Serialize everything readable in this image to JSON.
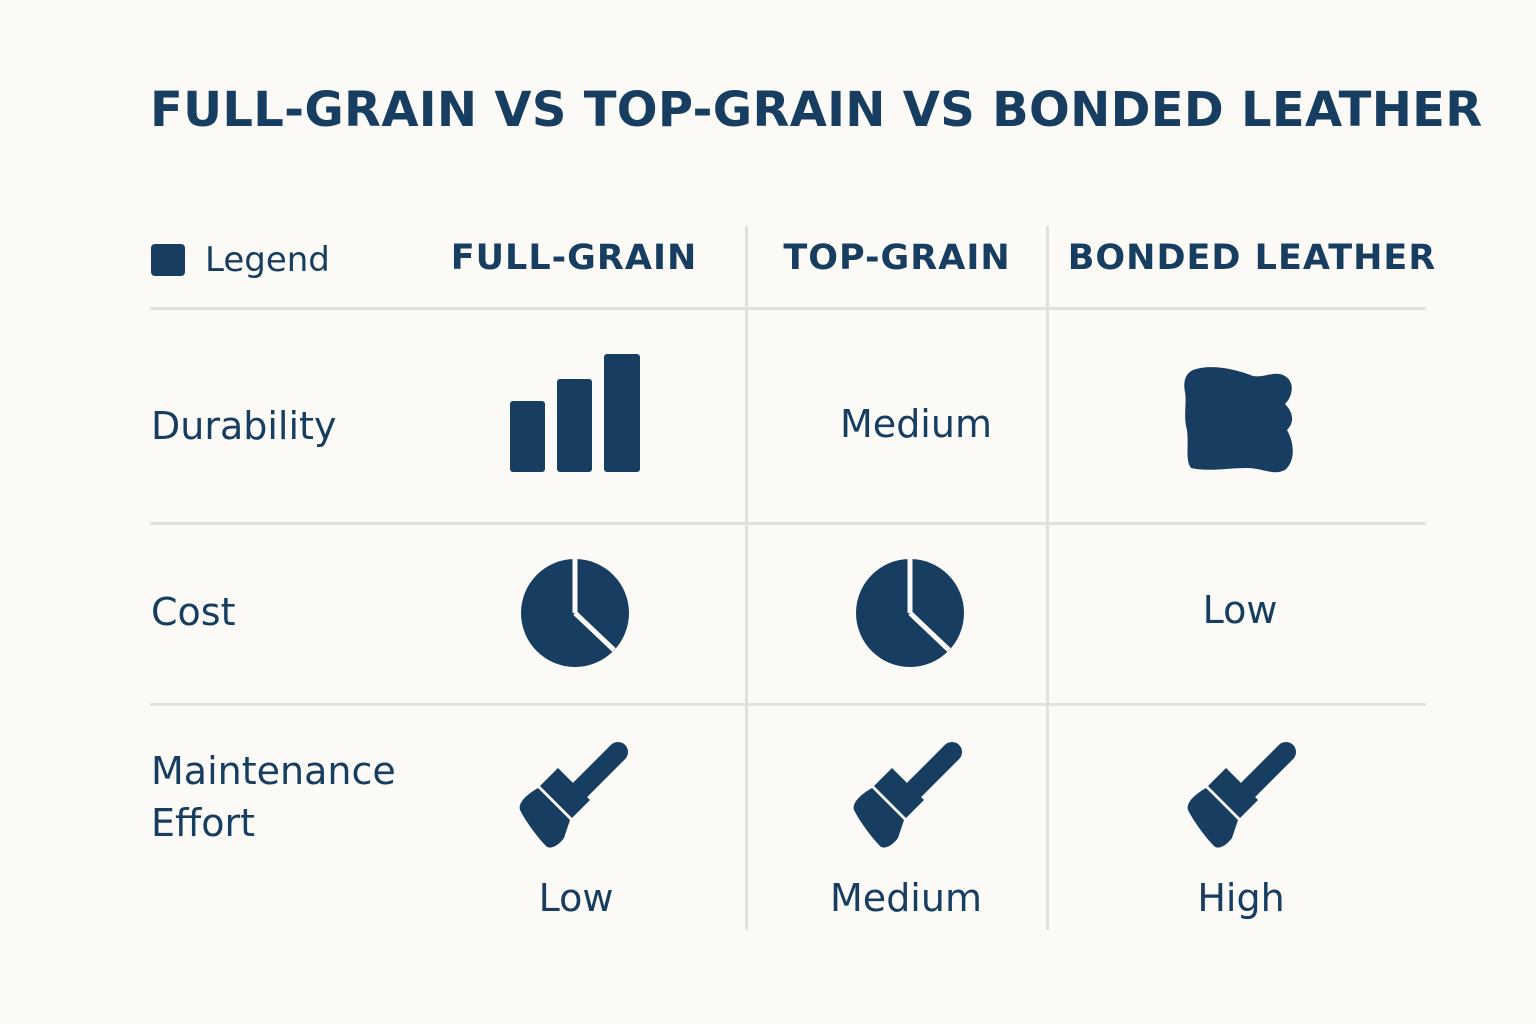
{
  "title": "FULL-GRAIN VS TOP-GRAIN VS BONDED LEATHER",
  "legend": {
    "label": "Legend",
    "icon": "square-swatch"
  },
  "columns": [
    "FULL-GRAIN",
    "TOP-GRAIN",
    "BONDED LEATHER"
  ],
  "rows": [
    {
      "label": "Durability",
      "cells": [
        {
          "icon": "bar-chart-icon",
          "text": ""
        },
        {
          "icon": "",
          "text": "Medium"
        },
        {
          "icon": "leather-hide-icon",
          "text": ""
        }
      ]
    },
    {
      "label": "Cost",
      "cells": [
        {
          "icon": "pie-chart-icon",
          "text": ""
        },
        {
          "icon": "pie-chart-icon",
          "text": ""
        },
        {
          "icon": "",
          "text": "Low"
        }
      ]
    },
    {
      "label_lines": [
        "Maintenance",
        "Effort"
      ],
      "cells": [
        {
          "icon": "brush-icon",
          "text": "Low"
        },
        {
          "icon": "brush-icon",
          "text": "Medium"
        },
        {
          "icon": "brush-icon",
          "text": "High"
        }
      ]
    }
  ],
  "colors": {
    "accent": "#173d60",
    "background": "#fbfaf6",
    "grid": "#e1e1de"
  }
}
